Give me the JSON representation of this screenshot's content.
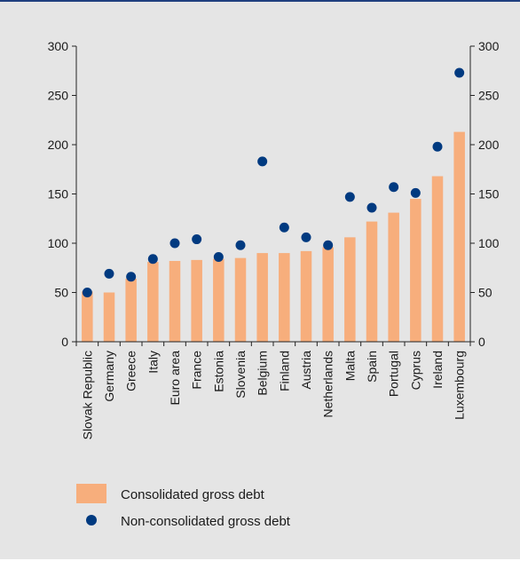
{
  "chart_data": {
    "type": "bar",
    "categories": [
      "Slovak Republic",
      "Germany",
      "Greece",
      "Italy",
      "Euro area",
      "France",
      "Estonia",
      "Slovenia",
      "Belgium",
      "Finland",
      "Austria",
      "Netherlands",
      "Malta",
      "Spain",
      "Portugal",
      "Cyprus",
      "Ireland",
      "Luxembourg"
    ],
    "series": [
      {
        "name": "Consolidated gross debt",
        "type": "bar",
        "color": "#f7ae7c",
        "values": [
          51,
          50,
          64,
          81,
          82,
          83,
          84,
          85,
          90,
          90,
          92,
          96,
          106,
          122,
          131,
          145,
          168,
          213
        ]
      },
      {
        "name": "Non-consolidated gross debt",
        "type": "scatter",
        "color": "#003a80",
        "values": [
          50,
          69,
          66,
          84,
          100,
          104,
          86,
          98,
          183,
          116,
          106,
          98,
          147,
          136,
          157,
          151,
          198,
          273
        ]
      }
    ],
    "ylim": [
      0,
      300
    ],
    "yticks": [
      0,
      50,
      100,
      150,
      200,
      250,
      300
    ],
    "y_axis_labels": [
      "0",
      "50",
      "100",
      "150",
      "200",
      "250",
      "300"
    ],
    "legend_position": "bottom-left",
    "grid": false,
    "dual_y_axis": true
  },
  "colors": {
    "panel_background": "#e5e5e5",
    "top_rule": "#1f3f7f",
    "bar": "#f7ae7c",
    "dot": "#003a80"
  }
}
